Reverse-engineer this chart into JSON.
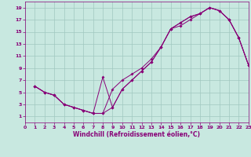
{
  "bg_color": "#c8e8e0",
  "grid_color": "#a0c8c0",
  "line_color": "#880077",
  "xlim": [
    0,
    23
  ],
  "ylim": [
    0,
    20
  ],
  "xticks": [
    0,
    1,
    2,
    3,
    4,
    5,
    6,
    7,
    8,
    9,
    10,
    11,
    12,
    13,
    14,
    15,
    16,
    17,
    18,
    19,
    20,
    21,
    22,
    23
  ],
  "yticks": [
    1,
    3,
    5,
    7,
    9,
    11,
    13,
    15,
    17,
    19
  ],
  "xlabel": "Windchill (Refroidissement éolien,°C)",
  "line1_x": [
    1,
    2,
    3,
    4,
    5,
    6,
    7,
    8,
    9,
    10,
    11,
    12,
    13,
    14,
    15,
    16,
    17,
    18,
    19,
    20,
    21,
    22,
    23
  ],
  "line1_y": [
    6.0,
    5.0,
    4.5,
    3.0,
    2.5,
    2.0,
    1.5,
    1.5,
    2.5,
    5.5,
    7.0,
    8.5,
    10.0,
    12.5,
    15.5,
    16.5,
    17.5,
    18.0,
    19.0,
    18.5,
    17.0,
    14.0,
    9.5
  ],
  "line2_x": [
    1,
    2,
    3,
    4,
    5,
    6,
    7,
    8,
    9,
    10,
    11,
    12,
    13,
    14,
    15,
    16,
    17,
    18,
    19,
    20,
    21,
    22,
    23
  ],
  "line2_y": [
    6.0,
    5.0,
    4.5,
    3.0,
    2.5,
    2.0,
    1.5,
    7.5,
    2.5,
    5.5,
    7.0,
    8.5,
    10.0,
    12.5,
    15.5,
    16.5,
    17.5,
    18.0,
    19.0,
    18.5,
    17.0,
    14.0,
    9.5
  ],
  "line3_x": [
    1,
    2,
    3,
    4,
    5,
    6,
    7,
    8,
    9,
    10,
    11,
    12,
    13,
    14,
    15,
    16,
    17,
    18,
    19,
    20,
    21,
    22,
    23
  ],
  "line3_y": [
    6.0,
    5.0,
    4.5,
    3.0,
    2.5,
    2.0,
    1.5,
    1.5,
    5.5,
    7.0,
    8.0,
    9.0,
    10.5,
    12.5,
    15.5,
    16.0,
    17.0,
    18.0,
    19.0,
    18.5,
    17.0,
    14.0,
    9.5
  ]
}
